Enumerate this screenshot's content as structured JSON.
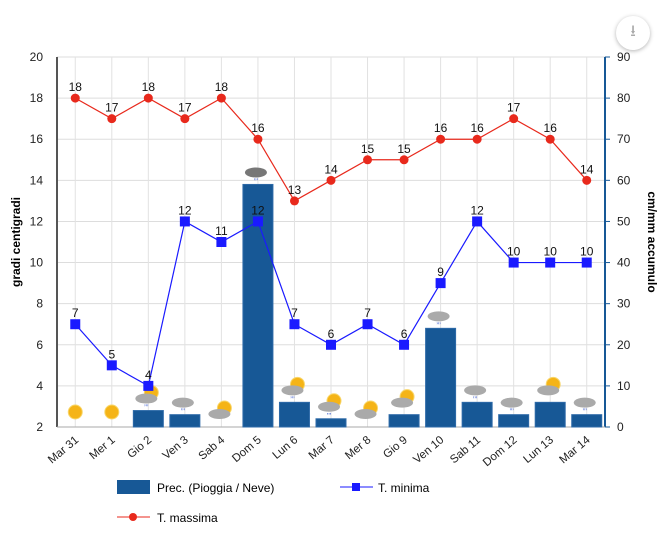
{
  "download_icon": "download-icon",
  "chart_data": {
    "type": "bar+line",
    "categories": [
      "Mar 31",
      "Mer 1",
      "Gio 2",
      "Ven 3",
      "Sab 4",
      "Dom 5",
      "Lun 6",
      "Mar 7",
      "Mer 8",
      "Gio 9",
      "Ven 10",
      "Sab 11",
      "Dom 12",
      "Lun 13",
      "Mar 14"
    ],
    "ylabel": "gradi centigradi",
    "ylim": [
      2,
      20
    ],
    "yticks": [
      2,
      4,
      6,
      8,
      10,
      12,
      14,
      16,
      18,
      20
    ],
    "y2label": "cm/mm accumulo",
    "y2lim": [
      0,
      90
    ],
    "y2ticks": [
      0,
      10,
      20,
      30,
      40,
      50,
      60,
      70,
      80,
      90
    ],
    "grid": true,
    "series": [
      {
        "name": "Prec. (Pioggia / Neve)",
        "type": "bar",
        "axis": "right",
        "color": "#175896",
        "values": [
          0,
          0,
          4,
          3,
          0,
          59,
          6,
          2,
          0,
          3,
          24,
          6,
          3,
          6,
          3
        ]
      },
      {
        "name": "T. minima",
        "type": "line",
        "axis": "left",
        "color": "#1a1aff",
        "marker": "square",
        "values": [
          7,
          5,
          4,
          12,
          11,
          12,
          7,
          6,
          7,
          6,
          9,
          12,
          10,
          10,
          10
        ]
      },
      {
        "name": "T. massima",
        "type": "line",
        "axis": "left",
        "color": "#e8291c",
        "marker": "circle",
        "values": [
          18,
          17,
          18,
          17,
          18,
          16,
          13,
          14,
          15,
          15,
          16,
          16,
          17,
          16,
          14
        ]
      }
    ],
    "weather_icons": [
      "sun",
      "sun",
      "sun-rain",
      "rain-cloud",
      "sun-cloud",
      "storm-cloud",
      "sun-rain",
      "sun-rain",
      "sun-cloud",
      "sun-cloud",
      "rain-cloud",
      "rain-cloud",
      "rain-cloud",
      "sun-cloud",
      "rain-cloud"
    ],
    "legend_position": "bottom"
  }
}
